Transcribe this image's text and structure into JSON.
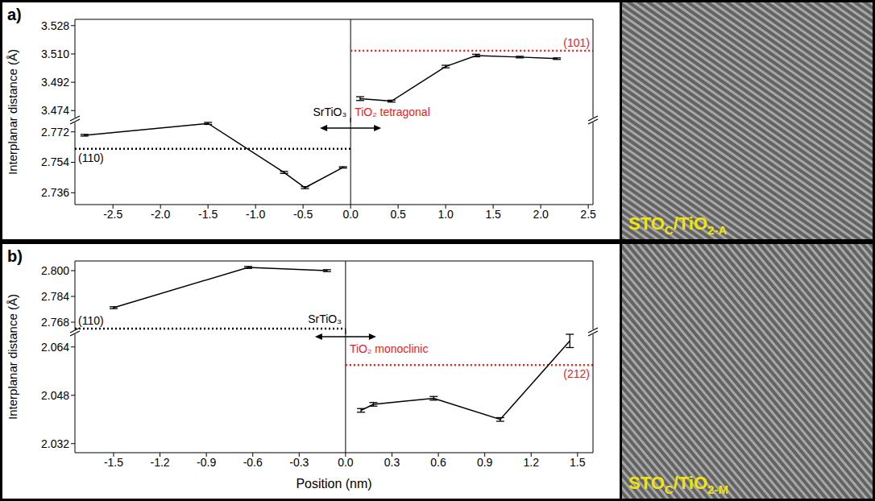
{
  "chart_data": [
    {
      "type": "line",
      "panel": "a)",
      "y_label": "Interplanar distance (Å)",
      "xlim": [
        -2.9,
        2.55
      ],
      "xticks": [
        -2.5,
        {
          "value": -2,
          "label": "-2.0"
        },
        -1.5,
        {
          "value": -1,
          "label": "-1.0"
        },
        -0.5,
        {
          "value": 0,
          "label": "0.0"
        },
        0.5,
        {
          "value": 1,
          "label": "1.0"
        },
        1.5,
        {
          "value": 2,
          "label": "2.0"
        },
        2.5
      ],
      "ylim": [
        2.729,
        2.779
      ],
      "yticks": [
        2.736,
        2.754,
        2.772
      ],
      "y2lim": [
        3.468,
        3.532
      ],
      "y2ticks": [
        3.474,
        3.492,
        {
          "value": 3.51,
          "label": "3.510"
        },
        3.528
      ],
      "interface": 0,
      "series": [
        {
          "axis": "y",
          "color": "#000000",
          "x": [
            -2.8,
            -1.5,
            -0.7,
            -0.48,
            -0.08
          ],
          "values": [
            2.77,
            2.777,
            2.748,
            2.739,
            2.751
          ],
          "errors": [
            0.0005,
            0.0006,
            0.0006,
            0.0006,
            0.0004
          ]
        },
        {
          "axis": "y2",
          "color": "#000000",
          "x": [
            0.1,
            0.43,
            1.0,
            1.32,
            1.78,
            2.17
          ],
          "values": [
            3.4816,
            3.48,
            3.502,
            3.509,
            3.508,
            3.507
          ],
          "errors": [
            0.0012,
            0.0006,
            0.0008,
            0.0008,
            0.0005,
            0.0005
          ]
        }
      ],
      "reference_lines": [
        {
          "value": 2.762,
          "axis": "y",
          "label": "(110)",
          "color": "#000000",
          "line_style": "dotted"
        },
        {
          "value": 3.512,
          "axis": "y2",
          "label": "(101)",
          "color": "#e8211d",
          "line_style": "dotted"
        }
      ],
      "annotations": [
        {
          "text": "SrTiO₃",
          "color": "#000000"
        },
        {
          "text": "TiO₂ tetragonal",
          "color": "#e8211d"
        }
      ],
      "image_caption": [
        "STO",
        "C",
        "/TiO",
        "2-A"
      ]
    },
    {
      "type": "line",
      "panel": "b)",
      "y_label": "Interplanar distance (Å)",
      "x_label": "Position (nm)",
      "xlim": [
        -1.75,
        1.6
      ],
      "xticks": [
        -1.5,
        -1.2,
        -0.9,
        -0.6,
        -0.3,
        {
          "value": 0,
          "label": "0.0"
        },
        0.3,
        0.6,
        0.9,
        1.2,
        1.5
      ],
      "ylim": [
        2.029,
        2.069
      ],
      "yticks": [
        2.032,
        2.048,
        2.064
      ],
      "y2lim": [
        2.762,
        2.806
      ],
      "y2ticks": [
        2.768,
        2.784,
        {
          "value": 2.8,
          "label": "2.800"
        }
      ],
      "interface": 0,
      "series": [
        {
          "axis": "y2",
          "color": "#000000",
          "x": [
            -1.5,
            -0.63,
            -0.12
          ],
          "values": [
            2.777,
            2.802,
            2.8
          ],
          "errors": [
            0.0006,
            0.0006,
            0.0006
          ]
        },
        {
          "axis": "y",
          "color": "#000000",
          "x": [
            0.1,
            0.18,
            0.57,
            1.0,
            1.45
          ],
          "values": [
            2.043,
            2.045,
            2.047,
            2.04,
            2.066
          ],
          "errors": [
            0.0006,
            0.0006,
            0.0006,
            0.0006,
            0.0022
          ]
        }
      ],
      "reference_lines": [
        {
          "value": 2.764,
          "axis": "y2",
          "label": "(110)",
          "color": "#000000",
          "line_style": "dotted"
        },
        {
          "value": 2.058,
          "axis": "y",
          "label": "(212)",
          "color": "#e8211d",
          "line_style": "dotted"
        }
      ],
      "annotations": [
        {
          "text": "SrTiO₃",
          "color": "#000000"
        },
        {
          "text": "TiO₂ monoclinic",
          "color": "#e8211d"
        }
      ],
      "image_caption": [
        "STO",
        "C",
        "/TiO",
        "2-M"
      ]
    }
  ]
}
